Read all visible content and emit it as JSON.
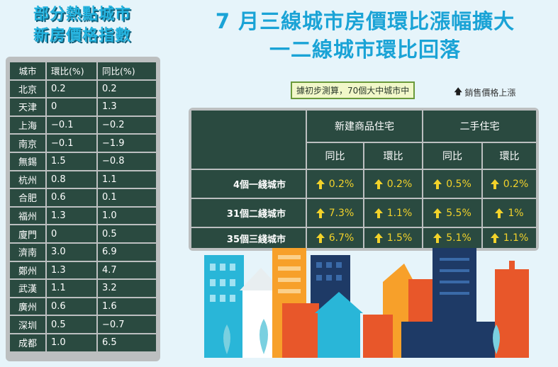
{
  "left_title": [
    "部分熱點城市",
    "新房價格指數"
  ],
  "left_table": {
    "headers": [
      "城市",
      "環比(%)",
      "同比(%)"
    ],
    "rows": [
      [
        "北京",
        "0.2",
        "0.2"
      ],
      [
        "天津",
        "0",
        "1.3"
      ],
      [
        "上海",
        "−0.1",
        "−0.2"
      ],
      [
        "南京",
        "−0.1",
        "−1.9"
      ],
      [
        "無錫",
        "1.5",
        "−0.8"
      ],
      [
        "杭州",
        "0.8",
        "1.1"
      ],
      [
        "合肥",
        "0.6",
        "0.1"
      ],
      [
        "福州",
        "1.3",
        "1.0"
      ],
      [
        "廈門",
        "0",
        "0.5"
      ],
      [
        "濟南",
        "3.0",
        "6.9"
      ],
      [
        "鄭州",
        "1.3",
        "4.7"
      ],
      [
        "武漢",
        "1.1",
        "3.2"
      ],
      [
        "廣州",
        "0.6",
        "1.6"
      ],
      [
        "深圳",
        "0.5",
        "−0.7"
      ],
      [
        "成都",
        "1.0",
        "6.5"
      ]
    ]
  },
  "main_title": [
    "7 月三線城市房價環比漲幅擴大",
    "一二線城市環比回落"
  ],
  "note": "據初步測算，70個大中城市中",
  "legend": "銷售價格上漲",
  "right_table": {
    "groups": [
      "新建商品住宅",
      "二手住宅"
    ],
    "subheaders": [
      "同比",
      "環比",
      "同比",
      "環比"
    ],
    "rows": [
      {
        "label": "4個一綫城市",
        "values": [
          "0.2%",
          "0.2%",
          "0.5%",
          "0.2%"
        ]
      },
      {
        "label": "31個二綫城市",
        "values": [
          "7.3%",
          "1.1%",
          "5.5%",
          "1%"
        ]
      },
      {
        "label": "35個三綫城市",
        "values": [
          "6.7%",
          "1.5%",
          "5.1%",
          "1.1%"
        ]
      }
    ]
  },
  "chart_data": {
    "type": "table",
    "tables": [
      {
        "title": "部分熱點城市新房價格指數",
        "columns": [
          "城市",
          "環比(%)",
          "同比(%)"
        ],
        "rows": [
          [
            "北京",
            0.2,
            0.2
          ],
          [
            "天津",
            0,
            1.3
          ],
          [
            "上海",
            -0.1,
            -0.2
          ],
          [
            "南京",
            -0.1,
            -1.9
          ],
          [
            "無錫",
            1.5,
            -0.8
          ],
          [
            "杭州",
            0.8,
            1.1
          ],
          [
            "合肥",
            0.6,
            0.1
          ],
          [
            "福州",
            1.3,
            1.0
          ],
          [
            "廈門",
            0,
            0.5
          ],
          [
            "濟南",
            3.0,
            6.9
          ],
          [
            "鄭州",
            1.3,
            4.7
          ],
          [
            "武漢",
            1.1,
            3.2
          ],
          [
            "廣州",
            0.6,
            1.6
          ],
          [
            "深圳",
            0.5,
            -0.7
          ],
          [
            "成都",
            1.0,
            6.5
          ]
        ]
      },
      {
        "title": "7 月三線城市房價環比漲幅擴大 一二線城市環比回落",
        "columns": [
          "",
          "新建商品住宅 同比",
          "新建商品住宅 環比",
          "二手住宅 同比",
          "二手住宅 環比"
        ],
        "rows": [
          [
            "4個一綫城市",
            0.2,
            0.2,
            0.5,
            0.2
          ],
          [
            "31個二綫城市",
            7.3,
            1.1,
            5.5,
            1
          ],
          [
            "35個三綫城市",
            6.7,
            1.5,
            5.1,
            1.1
          ]
        ]
      }
    ]
  },
  "colors": {
    "accent": "#1aa3d6",
    "table_bg": "#2a4a40",
    "table_border": "#bcbfc0",
    "value": "#f2d22a",
    "background": "#e6f4fa"
  }
}
